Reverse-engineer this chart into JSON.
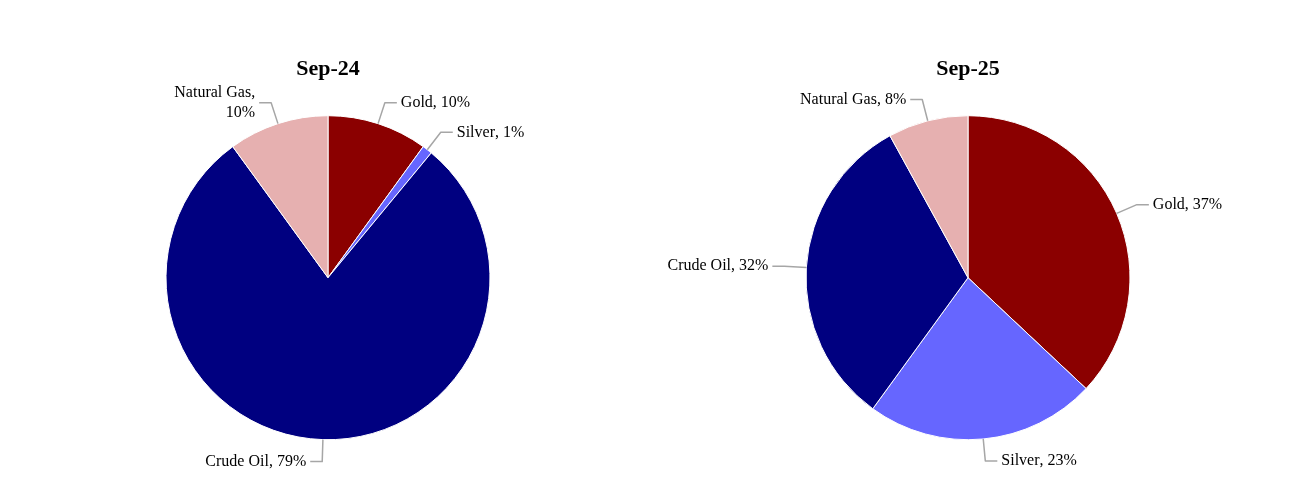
{
  "chart_data": [
    {
      "type": "pie",
      "title": "Sep-24",
      "categories": [
        "Gold",
        "Silver",
        "Crude Oil",
        "Natural Gas"
      ],
      "values": [
        10,
        1,
        79,
        10
      ],
      "colors": [
        "#8b0000",
        "#6666ff",
        "#000080",
        "#e6b0b0"
      ],
      "value_labels": [
        ", 10%",
        ", 1%",
        ", 79%",
        ", 10%"
      ],
      "legend": false
    },
    {
      "type": "pie",
      "title": "Sep-25",
      "categories": [
        "Gold",
        "Silver",
        "Crude Oil",
        "Natural Gas"
      ],
      "values": [
        37,
        23,
        32,
        8
      ],
      "colors": [
        "#8b0000",
        "#6666ff",
        "#000080",
        "#e6b0b0"
      ],
      "value_labels": [
        ", 37%",
        ", 23%",
        ", 32%",
        ", 8%"
      ],
      "legend": false
    }
  ]
}
